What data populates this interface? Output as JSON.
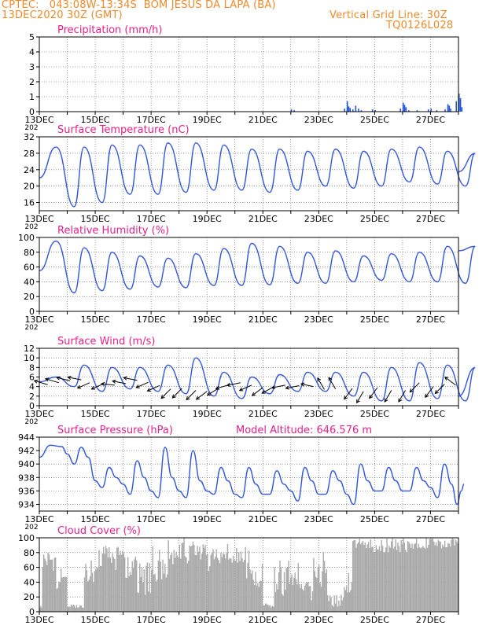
{
  "header": {
    "source": "CPTEC:",
    "coords": "043:08W-13:34S",
    "station": "BOM JESUS DA LAPA (BA)",
    "date": "13DEC2020 30Z (GMT)",
    "grid_note": "Vertical Grid Line: 30Z",
    "model": "TQ0126L028"
  },
  "x_axis": {
    "labels": [
      "13DEC",
      "15DEC",
      "17DEC",
      "19DEC",
      "21DEC",
      "23DEC",
      "25DEC",
      "27DEC"
    ],
    "year_label": "202"
  },
  "colors": {
    "line": "#3355dd",
    "precip": "#2255dd",
    "cloud": "#aaaaaa",
    "title": "#e8208a",
    "header": "#ee8a2c"
  },
  "chart_data": [
    {
      "type": "bar",
      "title": "Precipitation (mm/h)",
      "ylim": [
        0,
        5
      ],
      "yticks": [
        "0",
        "1",
        "2",
        "3",
        "4",
        "5"
      ],
      "x_range_days": [
        13,
        28
      ],
      "points": [
        [
          22.0,
          0.15
        ],
        [
          22.1,
          0.1
        ],
        [
          23.9,
          0.2
        ],
        [
          24.0,
          0.7
        ],
        [
          24.05,
          0.35
        ],
        [
          24.1,
          0.25
        ],
        [
          24.2,
          0.15
        ],
        [
          24.3,
          0.4
        ],
        [
          24.4,
          0.2
        ],
        [
          24.5,
          0.1
        ],
        [
          24.9,
          0.15
        ],
        [
          25.0,
          0.1
        ],
        [
          25.9,
          0.2
        ],
        [
          26.0,
          0.6
        ],
        [
          26.05,
          0.45
        ],
        [
          26.1,
          0.3
        ],
        [
          26.2,
          0.1
        ],
        [
          26.5,
          0.1
        ],
        [
          26.9,
          0.15
        ],
        [
          27.0,
          0.2
        ],
        [
          27.2,
          0.1
        ],
        [
          27.5,
          0.15
        ],
        [
          27.6,
          0.5
        ],
        [
          27.65,
          0.4
        ],
        [
          27.7,
          0.2
        ],
        [
          27.9,
          0.7
        ],
        [
          28.0,
          1.2
        ],
        [
          28.05,
          0.9
        ],
        [
          28.1,
          0.3
        ]
      ]
    },
    {
      "type": "line",
      "title": "Surface Temperature (nC)",
      "ylim": [
        14,
        32
      ],
      "yticks": [
        "16",
        "20",
        "24",
        "28",
        "32"
      ],
      "maxima": [
        29.5,
        29.5,
        30,
        30,
        30.5,
        30.5,
        30,
        29,
        29,
        28.5,
        29,
        28.5,
        29,
        29.5,
        28.5,
        28
      ],
      "minima": [
        15,
        16,
        18,
        18,
        18.5,
        19,
        19,
        18.5,
        19,
        20,
        19.5,
        20,
        21,
        20.5,
        20
      ],
      "start": 22,
      "end": 23.5
    },
    {
      "type": "line",
      "title": "Relative Humidity (%)",
      "ylim": [
        0,
        100
      ],
      "yticks": [
        "0",
        "20",
        "40",
        "60",
        "80",
        "100"
      ],
      "maxima": [
        95,
        86,
        80,
        75,
        72,
        78,
        85,
        92,
        88,
        80,
        82,
        75,
        78,
        80,
        88,
        88
      ],
      "minima": [
        25,
        28,
        30,
        33,
        32,
        35,
        35,
        36,
        38,
        38,
        40,
        42,
        40,
        40,
        38
      ],
      "start": 55,
      "end": 82
    },
    {
      "type": "line",
      "title": "Surface Wind (m/s)",
      "ylim": [
        0,
        12
      ],
      "yticks": [
        "0",
        "2",
        "4",
        "6",
        "8",
        "10",
        "12"
      ],
      "maxima": [
        6,
        8.5,
        8,
        8,
        8.5,
        10,
        7,
        6,
        6.5,
        7,
        7,
        7,
        8,
        9,
        8.5,
        8
      ],
      "minima": [
        4,
        3,
        3.5,
        3,
        2.5,
        2,
        1.5,
        2.5,
        3,
        3,
        2,
        1,
        1,
        1.5,
        1
      ],
      "start": 5,
      "end": 2,
      "barbs": [
        [
          13.3,
          4.4,
          -1,
          0.3
        ],
        [
          13.7,
          4.8,
          -1,
          0.3
        ],
        [
          14.1,
          5.2,
          -1,
          0.25
        ],
        [
          14.5,
          5.4,
          -1,
          0.2
        ],
        [
          14.8,
          4.8,
          -0.9,
          -0.4
        ],
        [
          15.3,
          4.6,
          -0.9,
          -0.4
        ],
        [
          15.7,
          4.3,
          -1,
          0.1
        ],
        [
          16.1,
          4.6,
          -1,
          0.2
        ],
        [
          16.5,
          5.3,
          -1,
          0.2
        ],
        [
          16.9,
          4.9,
          -0.9,
          -0.4
        ],
        [
          17.3,
          4.2,
          -0.9,
          -0.4
        ],
        [
          17.7,
          3.5,
          -0.7,
          -0.7
        ],
        [
          18.1,
          3.6,
          -0.7,
          -0.7
        ],
        [
          18.6,
          3.2,
          -0.7,
          -0.7
        ],
        [
          19.0,
          3.0,
          -0.8,
          -0.6
        ],
        [
          19.4,
          3.6,
          -0.8,
          -0.5
        ],
        [
          19.8,
          4.4,
          -1,
          -0.3
        ],
        [
          20.2,
          4.8,
          -1,
          -0.2
        ],
        [
          20.6,
          4.3,
          -0.9,
          -0.4
        ],
        [
          21.0,
          3.8,
          -0.8,
          -0.6
        ],
        [
          21.4,
          4.0,
          -0.9,
          -0.5
        ],
        [
          21.8,
          4.3,
          -1,
          -0.2
        ],
        [
          22.3,
          4.2,
          -1,
          -0.2
        ],
        [
          22.8,
          4.0,
          -0.9,
          0.2
        ],
        [
          23.2,
          3.4,
          -0.5,
          0.85
        ],
        [
          23.6,
          3.5,
          -0.5,
          0.85
        ],
        [
          24.2,
          3.6,
          -0.6,
          -0.8
        ],
        [
          24.6,
          3.0,
          -0.5,
          -0.85
        ],
        [
          25.1,
          3.8,
          -0.6,
          -0.8
        ],
        [
          25.6,
          3.2,
          -0.5,
          -0.85
        ],
        [
          26.1,
          3.2,
          -0.5,
          -0.85
        ],
        [
          26.6,
          4.8,
          -0.7,
          -0.7
        ],
        [
          27.1,
          4.0,
          -0.6,
          -0.8
        ],
        [
          27.5,
          4.5,
          -0.7,
          -0.7
        ],
        [
          27.9,
          4.3,
          -0.8,
          0.6
        ]
      ]
    },
    {
      "type": "line",
      "title": "Surface Pressure (hPa)",
      "subtitle": "Model Altitude: 646.576 m",
      "ylim": [
        933,
        944
      ],
      "yticks": [
        "934",
        "936",
        "938",
        "940",
        "942",
        "944"
      ],
      "series_pts": [
        [
          13.0,
          941
        ],
        [
          13.4,
          942.8
        ],
        [
          13.8,
          942.6
        ],
        [
          14.0,
          941.5
        ],
        [
          14.25,
          940
        ],
        [
          14.5,
          942.5
        ],
        [
          14.75,
          941
        ],
        [
          15.0,
          937.5
        ],
        [
          15.25,
          936.5
        ],
        [
          15.5,
          939.5
        ],
        [
          15.75,
          938
        ],
        [
          16.0,
          937
        ],
        [
          16.25,
          935.5
        ],
        [
          16.5,
          940.5
        ],
        [
          16.75,
          938
        ],
        [
          17.0,
          936
        ],
        [
          17.25,
          935
        ],
        [
          17.5,
          942.5
        ],
        [
          17.75,
          938
        ],
        [
          18.0,
          936
        ],
        [
          18.25,
          935
        ],
        [
          18.5,
          942
        ],
        [
          18.75,
          937.5
        ],
        [
          19.0,
          936
        ],
        [
          19.25,
          935.5
        ],
        [
          19.5,
          939.5
        ],
        [
          19.75,
          937.5
        ],
        [
          20.0,
          935.5
        ],
        [
          20.25,
          935
        ],
        [
          20.5,
          939.5
        ],
        [
          20.75,
          937
        ],
        [
          21.0,
          935.5
        ],
        [
          21.25,
          935.5
        ],
        [
          21.5,
          939
        ],
        [
          21.75,
          937
        ],
        [
          22.0,
          936
        ],
        [
          22.25,
          934.5
        ],
        [
          22.5,
          939.5
        ],
        [
          22.75,
          937.5
        ],
        [
          23.0,
          935.5
        ],
        [
          23.25,
          935.5
        ],
        [
          23.5,
          939
        ],
        [
          23.75,
          937.5
        ],
        [
          24.0,
          935.5
        ],
        [
          24.25,
          934
        ],
        [
          24.5,
          940
        ],
        [
          24.75,
          937.5
        ],
        [
          25.0,
          936
        ],
        [
          25.25,
          936
        ],
        [
          25.5,
          939.5
        ],
        [
          25.75,
          937.5
        ],
        [
          26.0,
          936
        ],
        [
          26.25,
          936
        ],
        [
          26.5,
          939.5
        ],
        [
          26.75,
          937.5
        ],
        [
          27.0,
          936.5
        ],
        [
          27.25,
          935
        ],
        [
          27.5,
          940
        ],
        [
          27.75,
          937
        ],
        [
          27.95,
          934
        ],
        [
          28.1,
          936
        ],
        [
          28.2,
          937
        ]
      ]
    },
    {
      "type": "bar",
      "title": "Cloud Cover (%)",
      "ylim": [
        0,
        100
      ],
      "yticks": [
        "0",
        "20",
        "40",
        "60",
        "80",
        "100"
      ],
      "segments": [
        [
          13.0,
          13.1,
          5,
          8
        ],
        [
          13.1,
          13.6,
          55,
          85
        ],
        [
          13.6,
          14.0,
          30,
          60
        ],
        [
          14.0,
          14.6,
          5,
          10
        ],
        [
          14.6,
          15.0,
          40,
          70
        ],
        [
          15.0,
          16.0,
          55,
          90
        ],
        [
          16.0,
          16.5,
          45,
          80
        ],
        [
          16.5,
          17.0,
          20,
          70
        ],
        [
          17.0,
          17.6,
          40,
          90
        ],
        [
          17.6,
          18.4,
          60,
          100
        ],
        [
          18.4,
          19.0,
          70,
          95
        ],
        [
          19.0,
          19.6,
          55,
          85
        ],
        [
          19.6,
          20.4,
          65,
          92
        ],
        [
          20.4,
          21.0,
          30,
          85
        ],
        [
          21.0,
          21.4,
          5,
          12
        ],
        [
          21.4,
          21.9,
          20,
          85
        ],
        [
          21.9,
          22.4,
          20,
          70
        ],
        [
          22.4,
          22.8,
          10,
          40
        ],
        [
          22.8,
          23.3,
          30,
          85
        ],
        [
          23.3,
          23.9,
          5,
          25
        ],
        [
          23.9,
          24.2,
          25,
          60
        ],
        [
          24.2,
          24.8,
          85,
          100
        ],
        [
          24.8,
          25.5,
          80,
          100
        ],
        [
          25.5,
          26.4,
          80,
          100
        ],
        [
          26.4,
          28.0,
          85,
          100
        ]
      ]
    }
  ]
}
